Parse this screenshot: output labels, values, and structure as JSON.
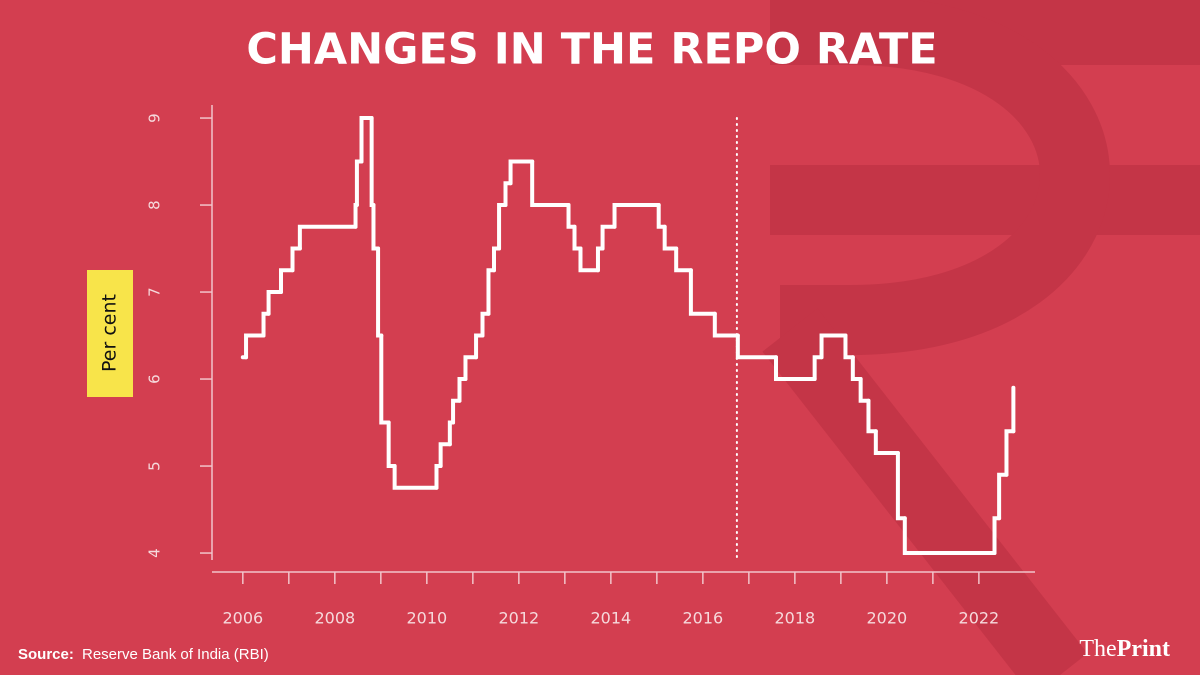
{
  "chart_data": {
    "type": "line",
    "step": "post",
    "title": "CHANGES IN THE REPO RATE",
    "y_label": "Per cent",
    "source_label": "Source:",
    "source_text": "Reserve Bank of India (RBI)",
    "logo": {
      "part1": "The",
      "part2": "Print"
    },
    "color": "#ffffff",
    "x": [
      2006.0,
      2006.07,
      2006.45,
      2006.56,
      2006.83,
      2007.08,
      2007.24,
      2008.45,
      2008.48,
      2008.58,
      2008.8,
      2008.84,
      2008.94,
      2009.01,
      2009.17,
      2009.3,
      2010.21,
      2010.3,
      2010.5,
      2010.57,
      2010.71,
      2010.84,
      2011.07,
      2011.21,
      2011.34,
      2011.46,
      2011.57,
      2011.71,
      2011.82,
      2012.29,
      2013.08,
      2013.21,
      2013.34,
      2013.72,
      2013.82,
      2014.08,
      2015.04,
      2015.17,
      2015.42,
      2015.74,
      2016.26,
      2016.76,
      2017.59,
      2018.43,
      2018.58,
      2019.1,
      2019.26,
      2019.43,
      2019.6,
      2019.76,
      2020.24,
      2020.39,
      2022.34,
      2022.44,
      2022.6,
      2022.75
    ],
    "values": [
      6.25,
      6.5,
      6.75,
      7.0,
      7.25,
      7.5,
      7.75,
      8.0,
      8.5,
      9.0,
      8.0,
      7.5,
      6.5,
      5.5,
      5.0,
      4.75,
      5.0,
      5.25,
      5.5,
      5.75,
      6.0,
      6.25,
      6.5,
      6.75,
      7.25,
      7.5,
      8.0,
      8.25,
      8.5,
      8.0,
      7.75,
      7.5,
      7.25,
      7.5,
      7.75,
      8.0,
      7.75,
      7.5,
      7.25,
      6.75,
      6.5,
      6.25,
      6.0,
      6.25,
      6.5,
      6.25,
      6.0,
      5.75,
      5.4,
      5.15,
      4.4,
      4.0,
      4.4,
      4.9,
      5.4,
      5.9
    ],
    "xlim": [
      2005.33,
      2023.22
    ],
    "xticks": [
      2006,
      2008,
      2010,
      2012,
      2014,
      2016,
      2018,
      2020,
      2022
    ],
    "xminor_ticks": [
      2007,
      2009,
      2011,
      2013,
      2015,
      2017,
      2019,
      2021
    ],
    "ylim": [
      3.92,
      9.15
    ],
    "yticks": [
      4,
      5,
      6,
      7,
      8,
      9
    ],
    "vline": 2016.74
  }
}
